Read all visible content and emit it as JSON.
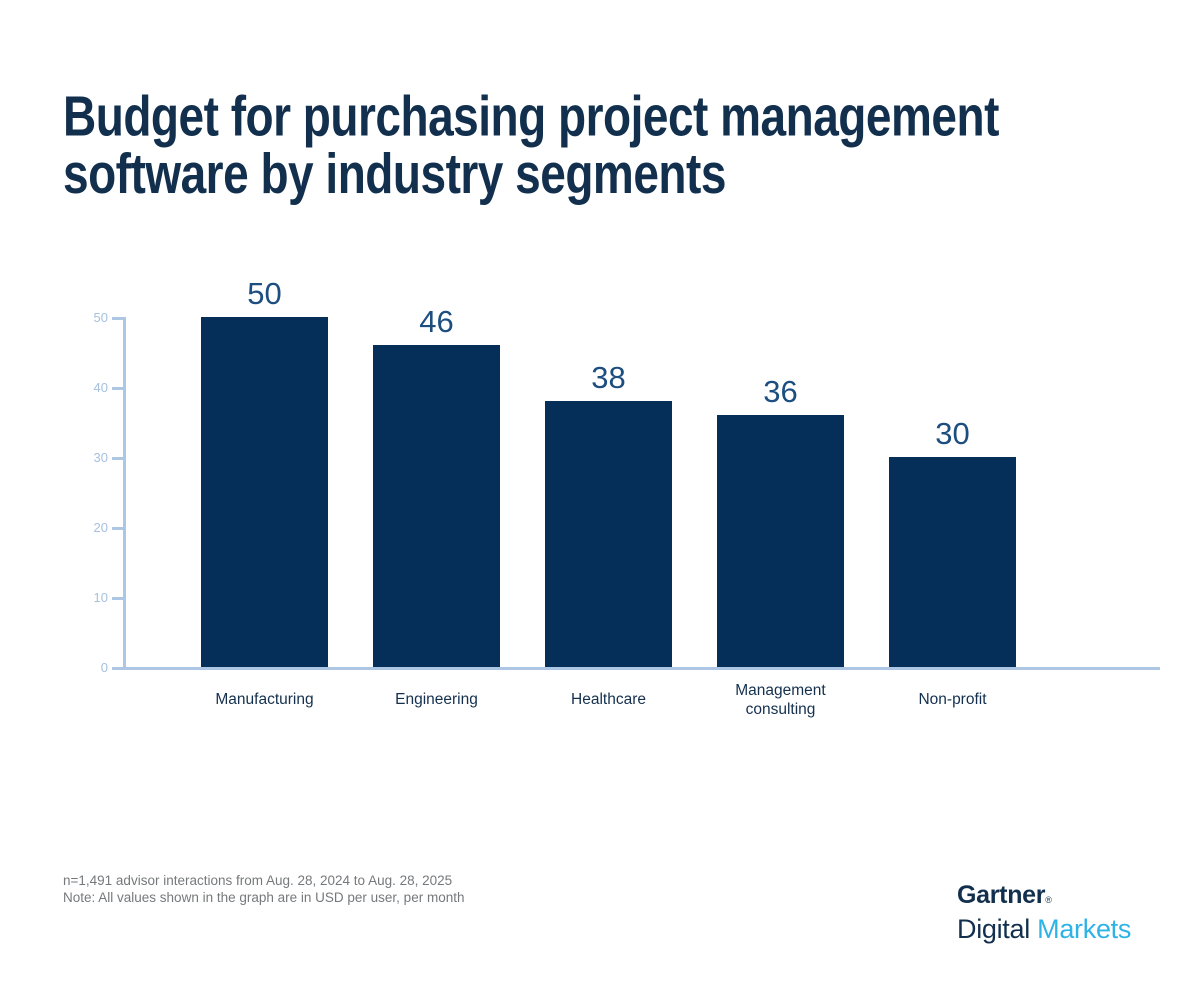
{
  "title": "Budget for purchasing project management software by industry segments",
  "chart_data": {
    "type": "bar",
    "title": "Budget for purchasing project management software by industry segments",
    "categories": [
      "Manufacturing",
      "Engineering",
      "Healthcare",
      "Management consulting",
      "Non-profit"
    ],
    "values": [
      50,
      46,
      38,
      36,
      30
    ],
    "value_labels": [
      "50",
      "46",
      "38",
      "36",
      "30"
    ],
    "xlabel": "",
    "ylabel": "",
    "ylim": [
      0,
      50
    ],
    "yticks": [
      0,
      10,
      20,
      30,
      40,
      50
    ],
    "grid": false,
    "legend": false,
    "bar_color": "#052f58",
    "units_note": "USD per user, per month"
  },
  "footnote": {
    "line1": "n=1,491 advisor interactions from Aug. 28, 2024 to Aug. 28, 2025",
    "line2": "Note: All values shown in the graph are in USD per user, per month"
  },
  "brand": {
    "gartner": "Gartner",
    "registered_mark": "®",
    "digital": "Digital",
    "markets": "Markets"
  },
  "colors": {
    "background": "#ffffff",
    "bar_navy": "#052f58",
    "title_navy": "#12304d",
    "value_label_navy": "#1d4e80",
    "category_label_navy": "#14304e",
    "axis_line_blue": "#adc6e3",
    "tick_label_blue": "#a6c0de",
    "footnote_gray": "#76797c",
    "markets_blue": "#2eb3e6"
  }
}
